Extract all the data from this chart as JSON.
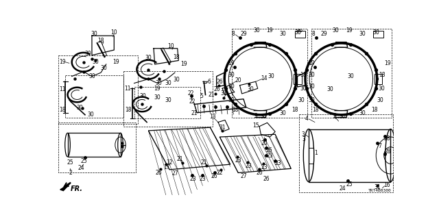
{
  "bg_color": "#ffffff",
  "line_color": "#000000",
  "diagram_code": "TRT4B0300",
  "gray_color": "#888888"
}
